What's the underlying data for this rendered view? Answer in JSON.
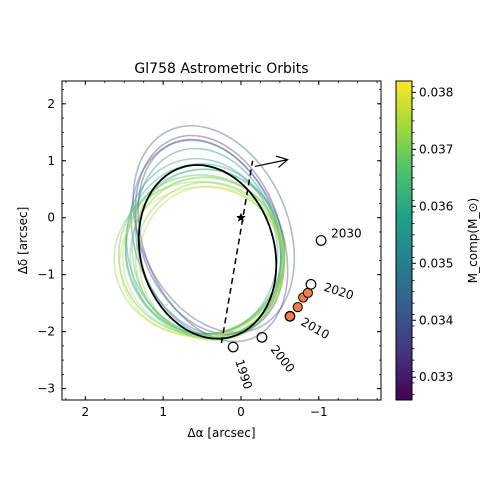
{
  "chart_data": {
    "type": "scatter",
    "title": "Gl758 Astrometric Orbits",
    "xlabel": "Δα [arcsec]",
    "ylabel": "Δδ [arcsec]",
    "xlim": [
      2.3,
      -1.8
    ],
    "ylim": [
      -3.2,
      2.4
    ],
    "xticks": [
      2,
      1,
      0,
      -1
    ],
    "xtick_labels": [
      "2",
      "1",
      "0",
      "−1"
    ],
    "yticks": [
      2,
      1,
      0,
      -1,
      -2,
      -3
    ],
    "ytick_labels": [
      "2",
      "1",
      "0",
      "−1",
      "−2",
      "−3"
    ],
    "grid": false,
    "colorbar": {
      "label": "M_comp(M_⊙)",
      "range": [
        0.0326,
        0.0382
      ],
      "ticks": [
        0.033,
        0.034,
        0.035,
        0.036,
        0.037,
        0.038
      ],
      "tick_labels": [
        "0.033",
        "0.034",
        "0.035",
        "0.036",
        "0.037",
        "0.038"
      ],
      "colors": [
        "#440154",
        "#46327e",
        "#365c8d",
        "#277f8e",
        "#1fa187",
        "#4ac16d",
        "#a0da39",
        "#fde725"
      ]
    },
    "star": {
      "x": 0.0,
      "y": 0.0
    },
    "best_orbit": {
      "center_x": 0.43,
      "center_y": -0.6,
      "rx": 0.86,
      "ry": 1.55,
      "angle_deg": 16,
      "color": "#000000"
    },
    "background_orbits": [
      {
        "center_x": 0.4,
        "center_y": -0.3,
        "rx": 0.9,
        "ry": 1.8,
        "angle_deg": 20,
        "mass": 0.0335
      },
      {
        "center_x": 0.35,
        "center_y": -0.2,
        "rx": 0.95,
        "ry": 1.9,
        "angle_deg": 24,
        "mass": 0.034
      },
      {
        "center_x": 0.45,
        "center_y": -0.35,
        "rx": 0.92,
        "ry": 1.75,
        "angle_deg": 18,
        "mass": 0.0345
      },
      {
        "center_x": 0.42,
        "center_y": -0.45,
        "rx": 0.9,
        "ry": 1.7,
        "angle_deg": 17,
        "mass": 0.035
      },
      {
        "center_x": 0.5,
        "center_y": -0.5,
        "rx": 0.96,
        "ry": 1.55,
        "angle_deg": 14,
        "mass": 0.0355
      },
      {
        "center_x": 0.48,
        "center_y": -0.55,
        "rx": 1.0,
        "ry": 1.5,
        "angle_deg": 10,
        "mass": 0.036
      },
      {
        "center_x": 0.46,
        "center_y": -0.6,
        "rx": 1.02,
        "ry": 1.45,
        "angle_deg": 8,
        "mass": 0.0362
      },
      {
        "center_x": 0.52,
        "center_y": -0.65,
        "rx": 1.05,
        "ry": 1.4,
        "angle_deg": 5,
        "mass": 0.0365
      },
      {
        "center_x": 0.44,
        "center_y": -0.7,
        "rx": 0.98,
        "ry": 1.42,
        "angle_deg": 12,
        "mass": 0.0368
      },
      {
        "center_x": 0.4,
        "center_y": -0.75,
        "rx": 0.95,
        "ry": 1.38,
        "angle_deg": 15,
        "mass": 0.037
      },
      {
        "center_x": 0.55,
        "center_y": -0.72,
        "rx": 1.08,
        "ry": 1.35,
        "angle_deg": 2,
        "mass": 0.0372
      },
      {
        "center_x": 0.38,
        "center_y": -0.8,
        "rx": 0.92,
        "ry": 1.36,
        "angle_deg": 18,
        "mass": 0.0374
      },
      {
        "center_x": 0.36,
        "center_y": -0.4,
        "rx": 0.88,
        "ry": 1.85,
        "angle_deg": 22,
        "mass": 0.0338
      },
      {
        "center_x": 0.48,
        "center_y": -0.68,
        "rx": 1.04,
        "ry": 1.38,
        "angle_deg": 6,
        "mass": 0.0376
      },
      {
        "center_x": 0.42,
        "center_y": -0.62,
        "rx": 0.97,
        "ry": 1.48,
        "angle_deg": 13,
        "mass": 0.0366
      },
      {
        "center_x": 0.5,
        "center_y": -0.78,
        "rx": 1.06,
        "ry": 1.32,
        "angle_deg": 4,
        "mass": 0.0378
      }
    ],
    "observations": [
      {
        "x": 0.1,
        "y": -2.27,
        "year": "1990",
        "style": "open"
      },
      {
        "x": -0.27,
        "y": -2.1,
        "year": "2000",
        "style": "open"
      },
      {
        "x": -0.63,
        "y": -1.73,
        "year": "2010",
        "style": "open"
      },
      {
        "x": -0.9,
        "y": -1.17,
        "year": "2020",
        "style": "open"
      },
      {
        "x": -1.03,
        "y": -0.4,
        "year": "2030",
        "style": "open"
      }
    ],
    "measured_points": [
      {
        "x": -0.63,
        "y": -1.73
      },
      {
        "x": -0.73,
        "y": -1.57
      },
      {
        "x": -0.8,
        "y": -1.4
      },
      {
        "x": -0.86,
        "y": -1.32
      }
    ],
    "node_line": {
      "x1": 0.25,
      "y1": -2.2,
      "x2": -0.15,
      "y2": 1.0
    },
    "motion_arrow": {
      "x1": -0.6,
      "y1": 1.02,
      "x2": -0.18,
      "y2": 0.9
    },
    "colors": {
      "measured": "#f47c4c",
      "node_line": "#000000"
    }
  }
}
